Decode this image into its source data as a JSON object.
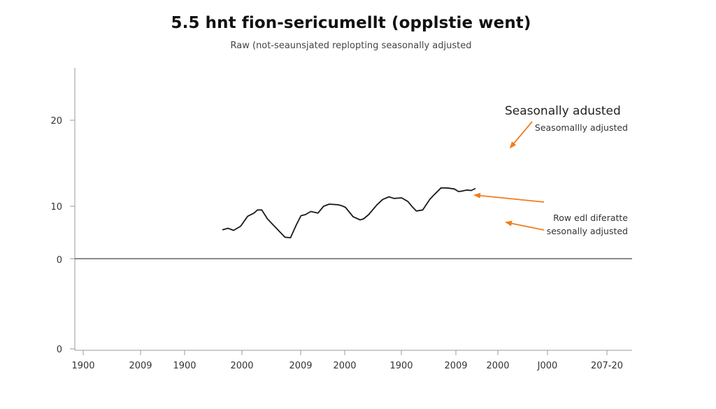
{
  "chart_data": {
    "type": "line",
    "title": "5.5 hnt fion-sericumellt (opplstie went)",
    "subtitle": "Raw (not-seaunsjated replopting seasonally adjusted",
    "xlabel": "",
    "ylabel": "",
    "y_tick_labels": [
      "20",
      "10",
      "0",
      "0"
    ],
    "x_tick_labels": [
      "1900",
      "2009",
      "1900",
      "2000",
      "2009",
      "2000",
      "1900",
      "2009",
      "2000",
      "J000",
      "207-20"
    ],
    "grid": false,
    "series": [
      {
        "color": "#1a1a1a",
        "x": [
          0.0,
          0.044,
          0.088,
          0.143,
          0.198,
          0.247,
          0.275,
          0.308,
          0.352,
          0.489,
          0.533,
          0.577,
          0.615,
          0.648,
          0.692,
          0.747,
          0.791,
          0.835,
          0.901,
          0.934,
          0.962,
          1.022,
          1.077,
          1.104,
          1.143,
          1.209,
          1.253,
          1.302,
          1.341,
          1.401,
          1.451,
          1.484,
          1.516,
          1.566,
          1.621,
          1.659,
          1.709,
          1.758,
          1.813,
          1.846,
          1.874,
          1.912,
          1.945,
          1.978
        ],
        "y": [
          5.5,
          5.8,
          5.4,
          6.2,
          8.1,
          8.7,
          9.3,
          9.3,
          7.6,
          4.1,
          4.0,
          6.4,
          8.2,
          8.4,
          9.0,
          8.7,
          10.0,
          10.4,
          10.3,
          10.1,
          9.8,
          8.0,
          7.4,
          7.6,
          8.4,
          10.3,
          11.3,
          11.8,
          11.5,
          11.6,
          10.9,
          9.9,
          9.1,
          9.3,
          11.3,
          12.3,
          13.5,
          13.5,
          13.3,
          12.8,
          12.9,
          13.1,
          13.0,
          13.4
        ]
      }
    ],
    "annotations": [
      {
        "text": "Seasonally adusted",
        "style": "large"
      },
      {
        "text": "Seasomallly adjusted",
        "style": "small"
      },
      {
        "text": "Row edl diferatte",
        "style": "small"
      },
      {
        "text": "sesonally adjusted",
        "style": "small"
      }
    ],
    "arrow_color": "#f07d1d",
    "line_color": "#1a1a1a",
    "axis_color": "#999999"
  }
}
